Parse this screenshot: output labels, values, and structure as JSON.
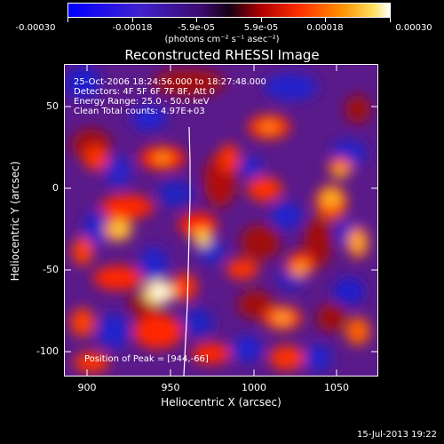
{
  "colorbar": {
    "tick_labels": [
      "-0.00030",
      "-0.00018",
      "-5.9e-05",
      "5.9e-05",
      "0.00018",
      "0.00030"
    ],
    "units": "(photons cm⁻² s⁻¹ asec⁻²)"
  },
  "plot": {
    "title": "Reconstructed RHESSI Image",
    "info_lines": [
      "25-Oct-2006 18:24:56.000 to 18:27:48.000",
      "Detectors: 4F 5F 6F 7F 8F, Att 0",
      "Energy Range: 25.0 - 50.0 keV",
      "Clean     Total counts: 4.97E+03"
    ],
    "peak_label": "Position of Peak = [944,-66]",
    "xlabel": "Heliocentric X (arcsec)",
    "ylabel": "Heliocentric Y (arcsec)",
    "x_ticks": [
      "900",
      "950",
      "1000",
      "1050"
    ],
    "y_ticks": [
      "50",
      "0",
      "-50",
      "-100"
    ]
  },
  "footer": {
    "timestamp": "15-Jul-2013 19:22"
  }
}
